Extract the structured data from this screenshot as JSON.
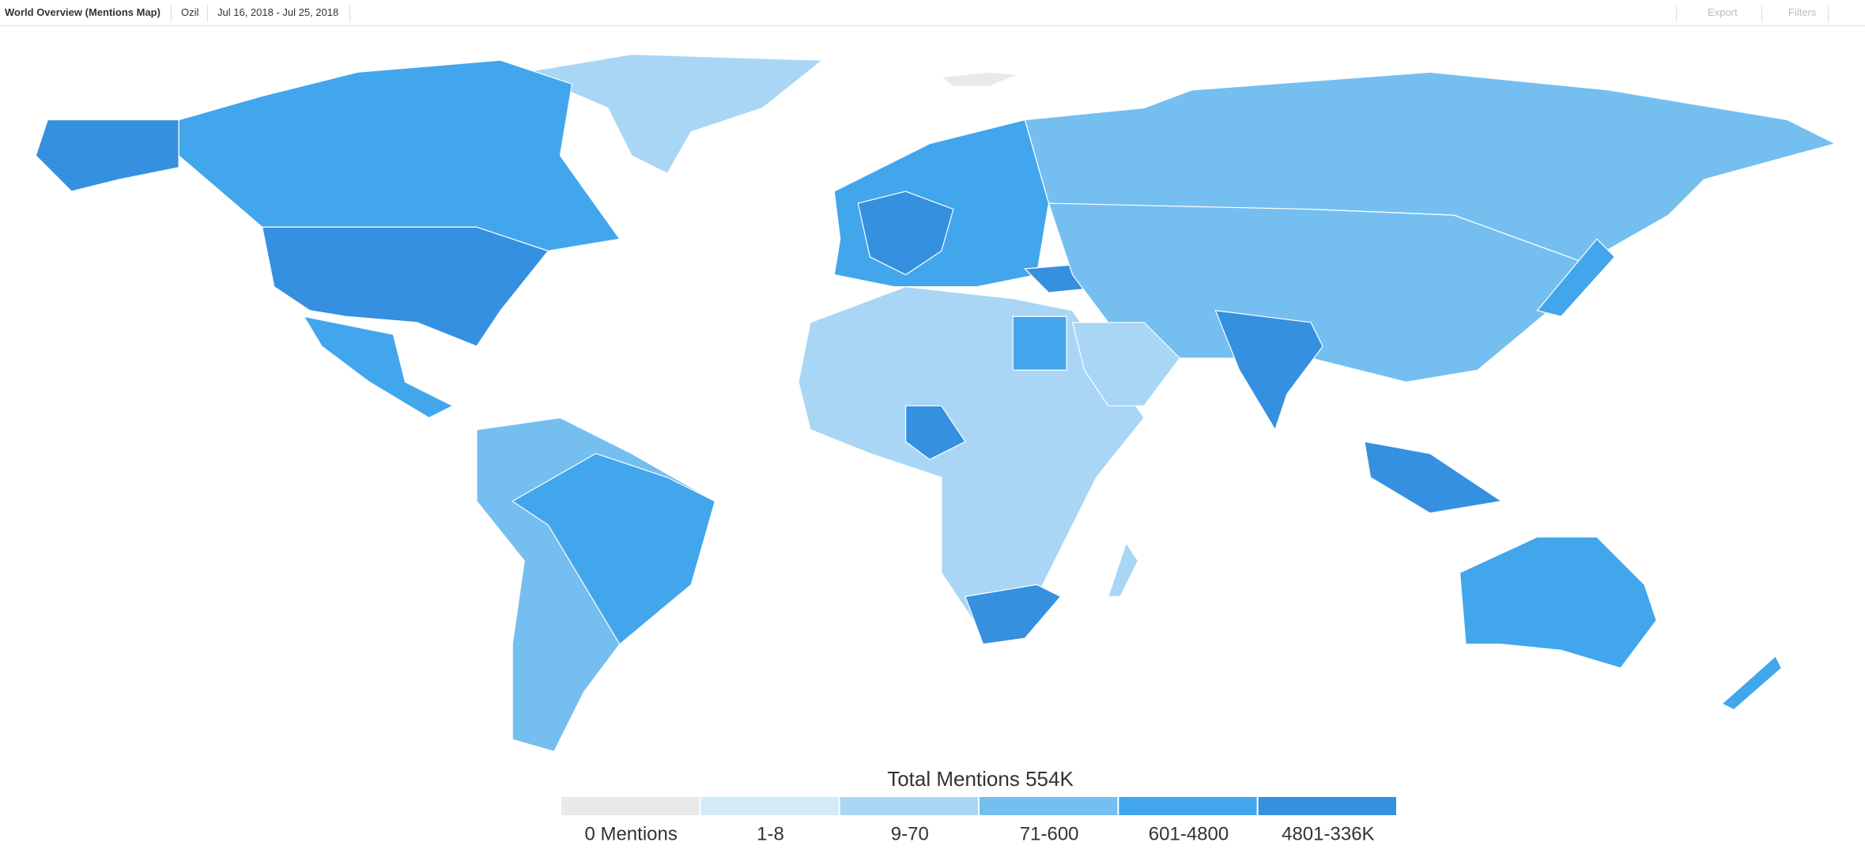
{
  "header": {
    "title": "World Overview (Mentions Map)",
    "topic": "Ozil",
    "date_range": "Jul 16, 2018 - Jul 25, 2018",
    "actions": [
      "Export",
      "Filters"
    ]
  },
  "legend": {
    "title": "Total Mentions 554K",
    "bins": [
      {
        "label": "0 Mentions",
        "color": "#e9e9e9"
      },
      {
        "label": "1-8",
        "color": "#d4eaf9"
      },
      {
        "label": "9-70",
        "color": "#a9d6f5"
      },
      {
        "label": "71-600",
        "color": "#74bff0"
      },
      {
        "label": "601-4800",
        "color": "#42a6ec"
      },
      {
        "label": "4801-336K",
        "color": "#3590e0"
      }
    ]
  }
}
